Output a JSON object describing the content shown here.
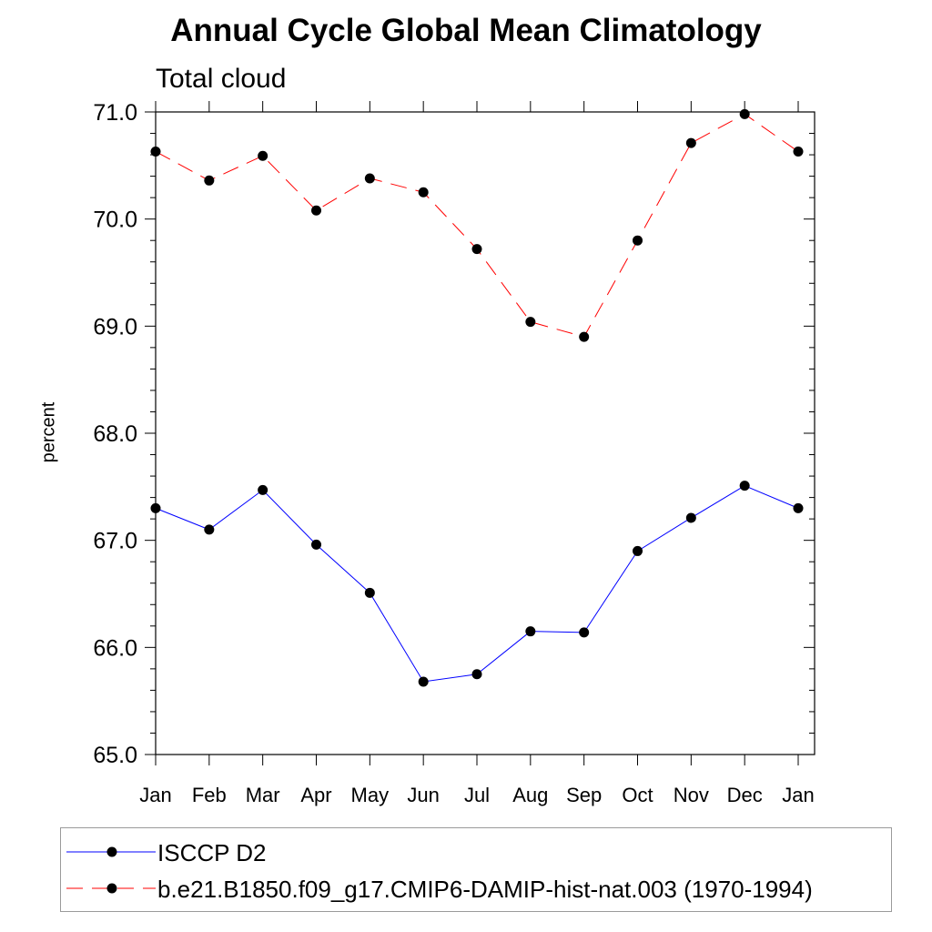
{
  "chart_data": {
    "type": "line",
    "title": "Annual Cycle Global Mean Climatology",
    "subtitle": "Total cloud",
    "xlabel": "",
    "ylabel": "percent",
    "categories": [
      "Jan",
      "Feb",
      "Mar",
      "Apr",
      "May",
      "Jun",
      "Jul",
      "Aug",
      "Sep",
      "Oct",
      "Nov",
      "Dec",
      "Jan"
    ],
    "ylim": [
      65.0,
      71.0
    ],
    "yticks": [
      "65.0",
      "66.0",
      "67.0",
      "68.0",
      "69.0",
      "70.0",
      "71.0"
    ],
    "grid": false,
    "legend_position": "bottom",
    "series": [
      {
        "name": "ISCCP D2",
        "color": "#0000ff",
        "dash": "solid",
        "values": [
          67.3,
          67.1,
          67.47,
          66.96,
          66.51,
          65.68,
          65.75,
          66.15,
          66.14,
          66.9,
          67.21,
          67.51,
          67.3
        ]
      },
      {
        "name": "b.e21.B1850.f09_g17.CMIP6-DAMIP-hist-nat.003 (1970-1994)",
        "color": "#ff0000",
        "dash": "dashed",
        "values": [
          70.63,
          70.36,
          70.59,
          70.08,
          70.38,
          70.25,
          69.72,
          69.04,
          68.9,
          69.8,
          70.71,
          70.98,
          70.63
        ]
      }
    ]
  }
}
